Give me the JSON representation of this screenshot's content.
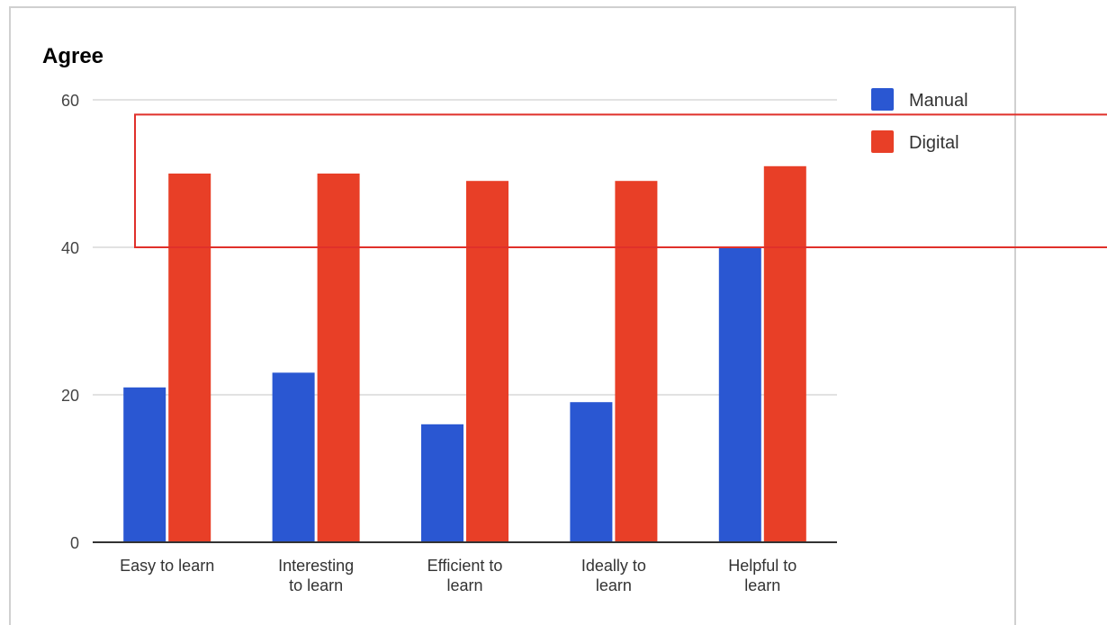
{
  "chart_data": {
    "type": "bar",
    "title": "Agree",
    "xlabel": "",
    "ylabel": "",
    "ylim": [
      0,
      60
    ],
    "yticks": [
      0,
      20,
      40,
      60
    ],
    "grid": true,
    "legend_position": "top-right",
    "categories": [
      [
        "Easy to learn"
      ],
      [
        "Interesting",
        "to learn"
      ],
      [
        "Efficient to",
        "learn"
      ],
      [
        "Ideally to",
        "learn"
      ],
      [
        "Helpful to",
        "learn"
      ]
    ],
    "series": [
      {
        "name": "Manual",
        "color": "#2a57d2",
        "values": [
          21,
          23,
          16,
          19,
          40
        ]
      },
      {
        "name": "Digital",
        "color": "#e83f27",
        "values": [
          50,
          50,
          49,
          49,
          51
        ]
      }
    ],
    "annotation": {
      "shape": "rectangle",
      "color": "#e0302a",
      "y_range": [
        40,
        58
      ]
    }
  }
}
